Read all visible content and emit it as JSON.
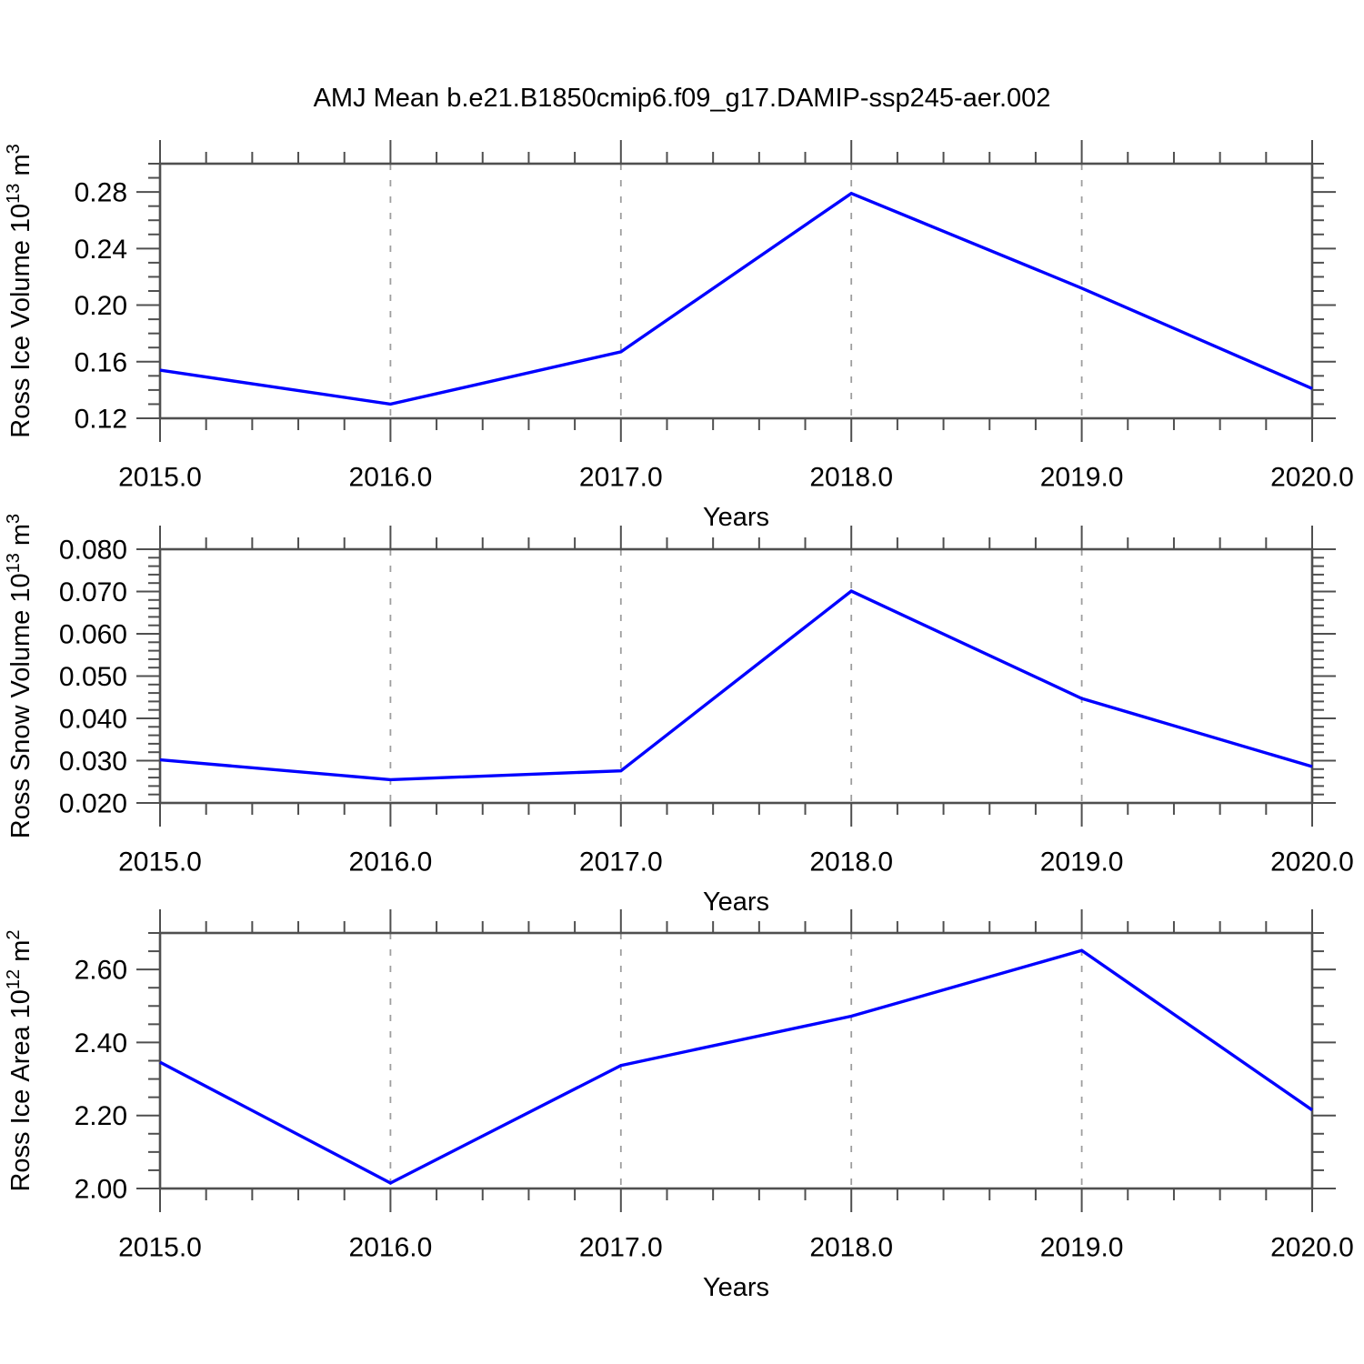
{
  "page": {
    "title": "AMJ Mean b.e21.B1850cmip6.f09_g17.DAMIP-ssp245-aer.002"
  },
  "colors": {
    "line": "#0000ff",
    "frame": "#4f4f4f",
    "grid": "#9e9e9e",
    "text": "#000000"
  },
  "chart_data": [
    {
      "type": "line",
      "id": "ross-ice-volume",
      "ylabel_segments": [
        {
          "t": "Ross Ice Volume 10"
        },
        {
          "t": "13",
          "sup": true
        },
        {
          "t": " m"
        },
        {
          "t": "3",
          "sup": true
        }
      ],
      "xlabel": "Years",
      "x": [
        2015.0,
        2016.0,
        2017.0,
        2018.0,
        2019.0,
        2020.0
      ],
      "values": [
        0.154,
        0.13,
        0.167,
        0.279,
        0.212,
        0.141
      ],
      "xlim": [
        2015.0,
        2020.0
      ],
      "ylim": [
        0.12,
        0.3
      ],
      "xticks": [
        2015.0,
        2016.0,
        2017.0,
        2018.0,
        2019.0,
        2020.0
      ],
      "xtick_labels": [
        "2015.0",
        "2016.0",
        "2017.0",
        "2018.0",
        "2019.0",
        "2020.0"
      ],
      "x_minor_step": 0.2,
      "yticks": [
        0.12,
        0.16,
        0.2,
        0.24,
        0.28
      ],
      "ytick_labels": [
        "0.12",
        "0.16",
        "0.20",
        "0.24",
        "0.28"
      ],
      "y_minor_step": 0.01,
      "grid_x": [
        2016.0,
        2017.0,
        2018.0,
        2019.0
      ],
      "grid_on": true,
      "legend": "none"
    },
    {
      "type": "line",
      "id": "ross-snow-volume",
      "ylabel_segments": [
        {
          "t": "Ross Snow Volume 10"
        },
        {
          "t": "13",
          "sup": true
        },
        {
          "t": " m"
        },
        {
          "t": "3",
          "sup": true
        }
      ],
      "xlabel": "Years",
      "x": [
        2015.0,
        2016.0,
        2017.0,
        2018.0,
        2019.0,
        2020.0
      ],
      "values": [
        0.0302,
        0.0255,
        0.0276,
        0.0701,
        0.0447,
        0.0286
      ],
      "xlim": [
        2015.0,
        2020.0
      ],
      "ylim": [
        0.02,
        0.08
      ],
      "xticks": [
        2015.0,
        2016.0,
        2017.0,
        2018.0,
        2019.0,
        2020.0
      ],
      "xtick_labels": [
        "2015.0",
        "2016.0",
        "2017.0",
        "2018.0",
        "2019.0",
        "2020.0"
      ],
      "x_minor_step": 0.2,
      "yticks": [
        0.02,
        0.03,
        0.04,
        0.05,
        0.06,
        0.07,
        0.08
      ],
      "ytick_labels": [
        "0.020",
        "0.030",
        "0.040",
        "0.050",
        "0.060",
        "0.070",
        "0.080"
      ],
      "y_minor_step": 0.002,
      "grid_x": [
        2016.0,
        2017.0,
        2018.0,
        2019.0
      ],
      "grid_on": true,
      "legend": "none"
    },
    {
      "type": "line",
      "id": "ross-ice-area",
      "ylabel_segments": [
        {
          "t": "Ross Ice Area 10"
        },
        {
          "t": "12",
          "sup": true
        },
        {
          "t": " m"
        },
        {
          "t": "2",
          "sup": true
        }
      ],
      "xlabel": "Years",
      "x": [
        2015.0,
        2016.0,
        2017.0,
        2018.0,
        2019.0,
        2020.0
      ],
      "values": [
        2.346,
        2.015,
        2.337,
        2.472,
        2.652,
        2.215
      ],
      "xlim": [
        2015.0,
        2020.0
      ],
      "ylim": [
        2.0,
        2.7
      ],
      "xticks": [
        2015.0,
        2016.0,
        2017.0,
        2018.0,
        2019.0,
        2020.0
      ],
      "xtick_labels": [
        "2015.0",
        "2016.0",
        "2017.0",
        "2018.0",
        "2019.0",
        "2020.0"
      ],
      "x_minor_step": 0.2,
      "yticks": [
        2.0,
        2.2,
        2.4,
        2.6
      ],
      "ytick_labels": [
        "2.00",
        "2.20",
        "2.40",
        "2.60"
      ],
      "y_minor_step": 0.05,
      "grid_x": [
        2016.0,
        2017.0,
        2018.0,
        2019.0
      ],
      "grid_on": true,
      "legend": "none"
    }
  ]
}
